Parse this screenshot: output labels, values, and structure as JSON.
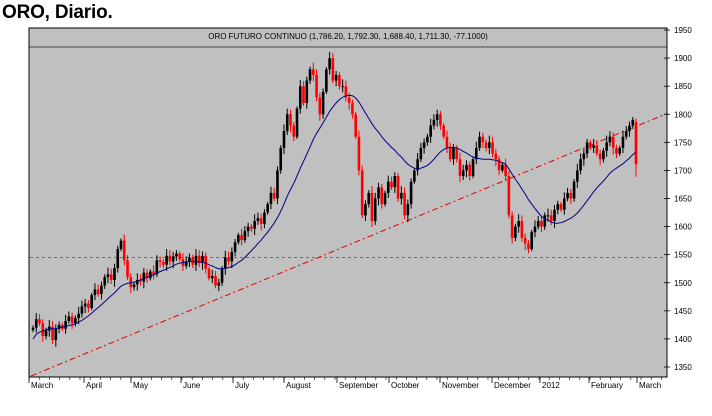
{
  "heading": "ORO, Diario.",
  "chart_data": {
    "type": "candlestick",
    "title": "ORO FUTURO CONTINUO (1,786.20, 1,792.30, 1,688.40, 1,711.30, -77.1000)",
    "x_tick_labels": [
      "March",
      "April",
      "May",
      "June",
      "July",
      "August",
      "September",
      "October",
      "November",
      "December",
      "2012",
      "February",
      "March"
    ],
    "y_tick_labels": [
      "1950",
      "1900",
      "1850",
      "1800",
      "1750",
      "1700",
      "1650",
      "1600",
      "1550",
      "1500",
      "1450",
      "1400",
      "1350"
    ],
    "ylim": [
      1330,
      1970
    ],
    "reference_line_value": 1545,
    "last_bar": {
      "open": 1786.2,
      "high": 1792.3,
      "low": 1688.4,
      "close": 1711.3,
      "change": -77.1
    },
    "closes": [
      1420,
      1435,
      1428,
      1405,
      1415,
      1422,
      1398,
      1418,
      1425,
      1418,
      1432,
      1440,
      1428,
      1437,
      1445,
      1458,
      1463,
      1455,
      1478,
      1488,
      1480,
      1495,
      1510,
      1515,
      1505,
      1526,
      1560,
      1575,
      1540,
      1510,
      1492,
      1497,
      1505,
      1502,
      1518,
      1508,
      1520,
      1515,
      1540,
      1537,
      1532,
      1548,
      1538,
      1547,
      1552,
      1542,
      1530,
      1538,
      1545,
      1532,
      1548,
      1535,
      1548,
      1525,
      1508,
      1512,
      1495,
      1500,
      1525,
      1545,
      1538,
      1555,
      1572,
      1585,
      1576,
      1592,
      1600,
      1596,
      1610,
      1615,
      1605,
      1625,
      1640,
      1660,
      1650,
      1700,
      1740,
      1770,
      1800,
      1780,
      1760,
      1810,
      1850,
      1820,
      1860,
      1880,
      1870,
      1830,
      1800,
      1840,
      1880,
      1900,
      1860,
      1870,
      1850,
      1850,
      1830,
      1820,
      1800,
      1760,
      1700,
      1620,
      1640,
      1660,
      1610,
      1650,
      1670,
      1640,
      1660,
      1680,
      1670,
      1690,
      1650,
      1660,
      1620,
      1640,
      1680,
      1700,
      1720,
      1740,
      1750,
      1760,
      1780,
      1790,
      1800,
      1780,
      1760,
      1740,
      1720,
      1740,
      1720,
      1690,
      1700,
      1710,
      1690,
      1720,
      1740,
      1760,
      1750,
      1740,
      1750,
      1730,
      1720,
      1700,
      1710,
      1690,
      1620,
      1580,
      1600,
      1610,
      1580,
      1570,
      1560,
      1590,
      1600,
      1610,
      1600,
      1620,
      1620,
      1610,
      1630,
      1640,
      1630,
      1650,
      1660,
      1650,
      1680,
      1700,
      1720,
      1730,
      1750,
      1740,
      1745,
      1730,
      1720,
      1735,
      1750,
      1760,
      1740,
      1730,
      1740,
      1760,
      1770,
      1780,
      1790,
      1711.3
    ],
    "moving_average": [
      1400,
      1408,
      1412,
      1414,
      1416,
      1418,
      1418,
      1418,
      1420,
      1421,
      1422,
      1424,
      1425,
      1427,
      1430,
      1433,
      1437,
      1441,
      1446,
      1451,
      1456,
      1461,
      1466,
      1472,
      1477,
      1482,
      1488,
      1494,
      1497,
      1499,
      1500,
      1501,
      1503,
      1505,
      1508,
      1510,
      1512,
      1514,
      1517,
      1520,
      1522,
      1525,
      1527,
      1530,
      1533,
      1535,
      1536,
      1537,
      1538,
      1538,
      1538,
      1537,
      1537,
      1535,
      1532,
      1530,
      1527,
      1525,
      1525,
      1526,
      1527,
      1529,
      1532,
      1536,
      1540,
      1545,
      1551,
      1557,
      1563,
      1570,
      1576,
      1583,
      1590,
      1598,
      1606,
      1616,
      1627,
      1640,
      1654,
      1666,
      1677,
      1690,
      1704,
      1716,
      1729,
      1742,
      1755,
      1766,
      1775,
      1785,
      1795,
      1805,
      1813,
      1820,
      1826,
      1830,
      1833,
      1834,
      1833,
      1829,
      1822,
      1812,
      1802,
      1793,
      1783,
      1775,
      1768,
      1760,
      1753,
      1747,
      1741,
      1736,
      1729,
      1724,
      1717,
      1711,
      1707,
      1704,
      1703,
      1704,
      1706,
      1709,
      1714,
      1720,
      1727,
      1733,
      1737,
      1740,
      1741,
      1741,
      1740,
      1737,
      1734,
      1731,
      1727,
      1724,
      1722,
      1721,
      1720,
      1720,
      1720,
      1719,
      1718,
      1716,
      1714,
      1711,
      1703,
      1693,
      1684,
      1676,
      1667,
      1658,
      1648,
      1640,
      1632,
      1625,
      1618,
      1614,
      1611,
      1608,
      1606,
      1606,
      1607,
      1609,
      1612,
      1615,
      1619,
      1624,
      1631,
      1638,
      1646,
      1654,
      1662,
      1669,
      1675,
      1681,
      1688,
      1695,
      1700,
      1704,
      1708,
      1712,
      1717,
      1722,
      1728,
      1733
    ]
  }
}
